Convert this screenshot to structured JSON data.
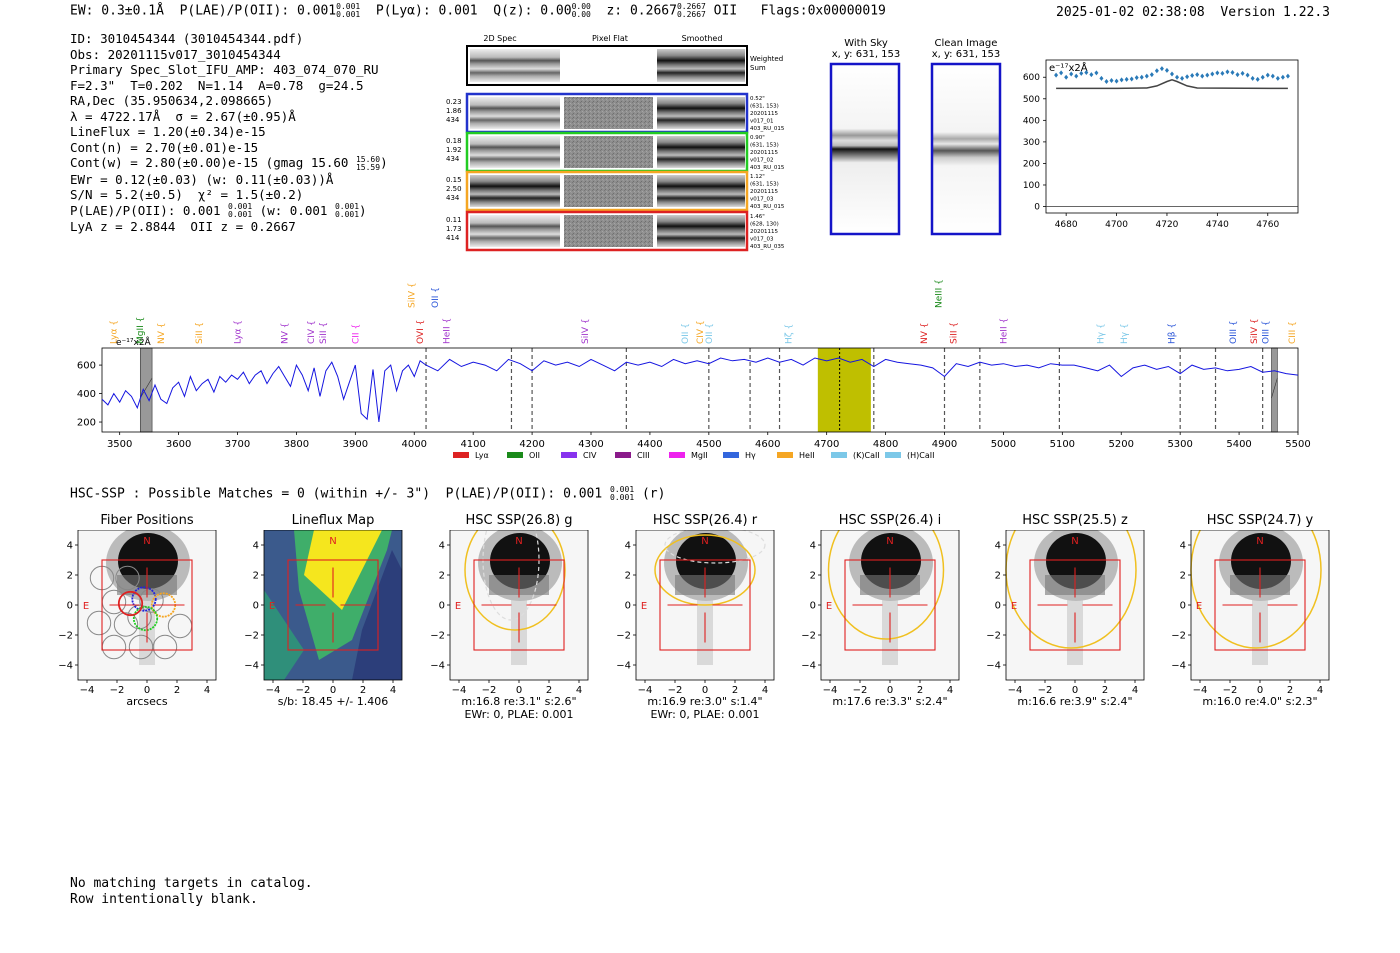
{
  "header": {
    "ew_label": "EW: 0.3±0.1Å",
    "plae_label": "P(LAE)/P(OII): 0.001",
    "plae_sup": "0.001",
    "plae_sub": "0.001",
    "plya_label": "P(Lyα): 0.001",
    "qz_label": "Q(z): 0.00",
    "qz_sup": "0.00",
    "qz_sub": "0.00",
    "z_label": "z: 0.2667",
    "z_sup": "0.2667",
    "z_sub": "0.2667",
    "z_line": "OII",
    "flags": "Flags:0x00000019",
    "timestamp": "2025-01-02 02:38:08",
    "version": "Version 1.22.3"
  },
  "info": {
    "id": "ID: 3010454344 (3010454344.pdf)",
    "obs": "Obs: 20201115v017_3010454344",
    "primary": "Primary Spec_Slot_IFU_AMP: 403_074_070_RU",
    "params": "F=2.3\"  T=0.202  N=1.14  A=0.78  g=24.5",
    "radec": "RA,Dec (35.950634,2.098665)",
    "lambda": "λ = 4722.17Å  σ = 2.67(±0.95)Å",
    "lineflux": "LineFlux = 1.20(±0.34)e-15",
    "cont_n": "Cont(n) = 2.70(±0.01)e-15",
    "cont_w": "Cont(w) = 2.80(±0.00)e-15 (gmag 15.60",
    "cont_w_sup": "15.60",
    "cont_w_sub": "15.59",
    "cont_w_close": ")",
    "ewr": "EWr = 0.12(±0.03) (w: 0.11(±0.03))Å",
    "sn": "S/N = 5.2(±0.5)  χ² = 1.5(±0.2)",
    "plae": "P(LAE)/P(OII): 0.001",
    "plae_sup": "0.001",
    "plae_sub": "0.001",
    "plae_w": "(w: 0.001",
    "plae_w_sup": "0.001",
    "plae_w_sub": "0.001",
    "plae_w_close": ")",
    "lya_oii": "LyA z = 2.8844  OII z = 0.2667"
  },
  "cutouts": {
    "col_labels": [
      "2D Spec",
      "Pixel Flat",
      "Smoothed"
    ],
    "weighted_label": "Weighted Sum",
    "rows": [
      {
        "left": [
          "0.23",
          "1.86",
          "434"
        ],
        "right": [
          "0.52\"",
          "(631, 153)",
          "20201115",
          "v017_01",
          "403_RU_015"
        ],
        "color": "#2233cc"
      },
      {
        "left": [
          "0.18",
          "1.92",
          "434"
        ],
        "right": [
          "0.90\"",
          "(631, 153)",
          "20201115",
          "v017_02",
          "403_RU_015"
        ],
        "color": "#22cc22"
      },
      {
        "left": [
          "0.15",
          "2.50",
          "434"
        ],
        "right": [
          "1.12\"",
          "(631, 153)",
          "20201115",
          "v017_03",
          "403_RU_015"
        ],
        "color": "#f5a623"
      },
      {
        "left": [
          "0.11",
          "1.73",
          "414"
        ],
        "right": [
          "1.46\"",
          "(628, 130)",
          "20201115",
          "v017_03",
          "403_RU_035"
        ],
        "color": "#dd2222"
      }
    ]
  },
  "sky_panels": {
    "with_sky_title": "With Sky",
    "with_sky_xy": "x, y: 631, 153",
    "clean_title": "Clean Image",
    "clean_xy": "x, y: 631, 153"
  },
  "zoom_plot": {
    "unit_label": "e⁻¹⁷x2Å",
    "x_ticks": [
      "4680",
      "4700",
      "4720",
      "4740",
      "4760"
    ],
    "y_ticks": [
      "0",
      "100",
      "200",
      "300",
      "400",
      "500",
      "600"
    ]
  },
  "chart_data": [
    {
      "type": "scatter",
      "title": "zoom spectrum",
      "xlim": [
        4672,
        4772
      ],
      "ylim": [
        -30,
        680
      ],
      "series": [
        {
          "name": "data",
          "color": "#2a7ab8",
          "x": [
            4676,
            4678,
            4680,
            4682,
            4684,
            4686,
            4688,
            4690,
            4692,
            4694,
            4696,
            4698,
            4700,
            4702,
            4704,
            4706,
            4708,
            4710,
            4712,
            4714,
            4716,
            4718,
            4720,
            4722,
            4724,
            4726,
            4728,
            4730,
            4732,
            4734,
            4736,
            4738,
            4740,
            4742,
            4744,
            4746,
            4748,
            4750,
            4752,
            4754,
            4756,
            4758,
            4760,
            4762,
            4764,
            4766,
            4768
          ],
          "y": [
            610,
            620,
            600,
            615,
            605,
            618,
            622,
            612,
            620,
            595,
            580,
            585,
            582,
            588,
            590,
            592,
            598,
            600,
            605,
            612,
            630,
            640,
            632,
            615,
            600,
            595,
            602,
            608,
            612,
            605,
            610,
            615,
            620,
            618,
            625,
            622,
            612,
            618,
            610,
            595,
            590,
            600,
            610,
            605,
            595,
            600,
            605
          ]
        },
        {
          "name": "model",
          "color": "#444444",
          "x": [
            4676,
            4700,
            4712,
            4716,
            4720,
            4722,
            4724,
            4728,
            4732,
            4768
          ],
          "y": [
            548,
            548,
            550,
            560,
            580,
            588,
            580,
            560,
            550,
            548
          ]
        }
      ]
    },
    {
      "type": "line",
      "title": "full spectrum",
      "xlabel": "",
      "ylabel": "e⁻¹⁷x2Å",
      "xlim": [
        3470,
        5500
      ],
      "ylim": [
        130,
        720
      ],
      "x_ticks": [
        3500,
        3600,
        3700,
        3800,
        3900,
        4000,
        4100,
        4200,
        4300,
        4400,
        4500,
        4600,
        4700,
        4800,
        4900,
        5000,
        5100,
        5200,
        5300,
        5400,
        5500
      ],
      "y_ticks": [
        200,
        400,
        600
      ],
      "series": [
        {
          "name": "flux",
          "color": "#1515e0",
          "x": [
            3470,
            3480,
            3490,
            3500,
            3510,
            3520,
            3530,
            3540,
            3550,
            3560,
            3570,
            3580,
            3590,
            3600,
            3610,
            3620,
            3630,
            3640,
            3650,
            3660,
            3670,
            3680,
            3690,
            3700,
            3710,
            3720,
            3730,
            3740,
            3750,
            3760,
            3770,
            3780,
            3790,
            3800,
            3810,
            3820,
            3830,
            3840,
            3850,
            3860,
            3870,
            3880,
            3890,
            3900,
            3910,
            3920,
            3930,
            3940,
            3950,
            3960,
            3970,
            3980,
            3990,
            4000,
            4010,
            4020,
            4040,
            4060,
            4080,
            4100,
            4120,
            4140,
            4160,
            4180,
            4200,
            4220,
            4240,
            4260,
            4280,
            4300,
            4320,
            4340,
            4360,
            4380,
            4400,
            4420,
            4440,
            4460,
            4480,
            4500,
            4520,
            4540,
            4560,
            4580,
            4600,
            4620,
            4640,
            4660,
            4680,
            4700,
            4720,
            4740,
            4760,
            4780,
            4800,
            4820,
            4840,
            4860,
            4880,
            4900,
            4920,
            4940,
            4960,
            4980,
            5000,
            5020,
            5040,
            5060,
            5080,
            5100,
            5120,
            5140,
            5160,
            5180,
            5200,
            5220,
            5240,
            5260,
            5280,
            5300,
            5320,
            5340,
            5360,
            5380,
            5400,
            5420,
            5440,
            5460,
            5480,
            5500
          ],
          "y": [
            360,
            320,
            400,
            340,
            420,
            380,
            300,
            430,
            350,
            460,
            360,
            330,
            440,
            480,
            380,
            520,
            420,
            470,
            500,
            410,
            520,
            480,
            530,
            500,
            550,
            470,
            530,
            560,
            470,
            540,
            590,
            520,
            450,
            600,
            530,
            420,
            580,
            380,
            560,
            620,
            520,
            360,
            480,
            600,
            260,
            220,
            570,
            200,
            560,
            600,
            420,
            560,
            600,
            520,
            630,
            600,
            560,
            640,
            590,
            620,
            600,
            560,
            640,
            610,
            560,
            630,
            600,
            620,
            590,
            640,
            600,
            560,
            620,
            600,
            620,
            590,
            640,
            610,
            630,
            610,
            650,
            630,
            640,
            620,
            650,
            620,
            640,
            600,
            650,
            630,
            650,
            620,
            640,
            590,
            640,
            620,
            610,
            600,
            580,
            520,
            610,
            590,
            620,
            600,
            610,
            590,
            600,
            580,
            610,
            600,
            600,
            580,
            560,
            600,
            520,
            580,
            600,
            570,
            590,
            540,
            600,
            570,
            580,
            560,
            570,
            590,
            550,
            560,
            540,
            530
          ]
        }
      ],
      "line_markers": [
        {
          "wave": 4020,
          "label": "OVI",
          "color": "#dd2222"
        },
        {
          "wave": 4165,
          "label": "OII",
          "color": "#2a55d8"
        },
        {
          "wave": 4200,
          "label": "OII",
          "color": "#2a55d8"
        },
        {
          "wave": 4360,
          "label": "SiIV",
          "color": "#a033cc"
        },
        {
          "wave": 4500,
          "label": "CIV",
          "color": "#f5a623"
        },
        {
          "wave": 4570,
          "label": "Hδ",
          "color": "#7cc8e8"
        },
        {
          "wave": 4620,
          "label": "Hγ",
          "color": "#7cc8e8"
        },
        {
          "wave": 4780,
          "label": "NV",
          "color": "#dd2222"
        },
        {
          "wave": 4900,
          "label": "SiII",
          "color": "#dd2222"
        },
        {
          "wave": 4960,
          "label": "HeII",
          "color": "#a033cc"
        },
        {
          "wave": 5095,
          "label": "Hγ",
          "color": "#7cc8e8"
        },
        {
          "wave": 5300,
          "label": "Hβ",
          "color": "#2a55d8"
        },
        {
          "wave": 5360,
          "label": "OIII",
          "color": "#2a55d8"
        },
        {
          "wave": 5440,
          "label": "SiIV",
          "color": "#dd2222"
        }
      ],
      "top_labels": [
        {
          "wave": 3495,
          "label": "Lyα",
          "color": "#f5a623"
        },
        {
          "wave": 3540,
          "label": "MgII",
          "color": "#1a8a1a"
        },
        {
          "wave": 3575,
          "label": "NV",
          "color": "#f5a623"
        },
        {
          "wave": 3640,
          "label": "SiII",
          "color": "#f5a623"
        },
        {
          "wave": 3705,
          "label": "Lyα",
          "color": "#a033cc"
        },
        {
          "wave": 3785,
          "label": "NV",
          "color": "#a033cc"
        },
        {
          "wave": 3830,
          "label": "CIV",
          "color": "#a033cc"
        },
        {
          "wave": 3850,
          "label": "SiII",
          "color": "#a033cc"
        },
        {
          "wave": 3905,
          "label": "CII",
          "color": "#ee22ee"
        },
        {
          "wave": 4015,
          "label": "OVI",
          "color": "#dd2222"
        },
        {
          "wave": 4060,
          "label": "HeII",
          "color": "#a033cc"
        },
        {
          "wave": 4295,
          "label": "SiIV",
          "color": "#a033cc"
        },
        {
          "wave": 4465,
          "label": "OII",
          "color": "#7cc8e8"
        },
        {
          "wave": 4490,
          "label": "CIV",
          "color": "#f5a623"
        },
        {
          "wave": 4505,
          "label": "OII",
          "color": "#7cc8e8"
        },
        {
          "wave": 4640,
          "label": "Hζ",
          "color": "#7cc8e8"
        },
        {
          "wave": 4870,
          "label": "NV",
          "color": "#dd2222"
        },
        {
          "wave": 4920,
          "label": "SiII",
          "color": "#dd2222"
        },
        {
          "wave": 5005,
          "label": "HeII",
          "color": "#a033cc"
        },
        {
          "wave": 5170,
          "label": "Hγ",
          "color": "#7cc8e8"
        },
        {
          "wave": 5210,
          "label": "Hγ",
          "color": "#7cc8e8"
        },
        {
          "wave": 5290,
          "label": "Hβ",
          "color": "#2a55d8"
        },
        {
          "wave": 5395,
          "label": "OIII",
          "color": "#2a55d8"
        },
        {
          "wave": 5430,
          "label": "SiIV",
          "color": "#dd2222"
        },
        {
          "wave": 5450,
          "label": "OIII",
          "color": "#2a55d8"
        },
        {
          "wave": 5495,
          "label": "CIII",
          "color": "#f5a623"
        }
      ],
      "upper_labels": [
        {
          "wave": 4000,
          "label": "SiIV",
          "color": "#f5a623"
        },
        {
          "wave": 4040,
          "label": "OII",
          "color": "#2a55d8"
        },
        {
          "wave": 4895,
          "label": "NeIII",
          "color": "#1a8a1a"
        }
      ],
      "highlight_band": [
        4685,
        4775
      ],
      "highlight_center": 4722,
      "gray_bands": [
        [
          3535,
          3555
        ],
        [
          5455,
          5465
        ]
      ],
      "unit_label": "e⁻¹⁷x2Å",
      "legend": [
        {
          "label": "Lyα",
          "color": "#dd2222"
        },
        {
          "label": "OII",
          "color": "#1a8a1a"
        },
        {
          "label": "CIV",
          "color": "#8833ee"
        },
        {
          "label": "CIII",
          "color": "#8a1a8a"
        },
        {
          "label": "MgII",
          "color": "#ee22ee"
        },
        {
          "label": "Hγ",
          "color": "#3366dd"
        },
        {
          "label": "HeII",
          "color": "#f5a623"
        },
        {
          "label": "(K)CaII",
          "color": "#7cc8e8"
        },
        {
          "label": "(H)CaII",
          "color": "#7cc8e8"
        }
      ]
    }
  ],
  "hsc_line": {
    "text": "HSC-SSP : Possible Matches = 0 (within +/- 3\")  P(LAE)/P(OII): 0.001",
    "sup": "0.001",
    "sub": "0.001",
    "suffix": "(r)"
  },
  "imaging_panels": [
    {
      "title": "Fiber Positions",
      "caption1": "arcsecs",
      "caption2": ""
    },
    {
      "title": "Lineflux Map",
      "caption1": "s/b: 18.45 +/- 1.406",
      "caption2": ""
    },
    {
      "title": "HSC SSP(26.8) g",
      "caption1": "m:16.8  re:3.1\"  s:2.6\"",
      "caption2": "EWr: 0, PLAE: 0.001"
    },
    {
      "title": "HSC SSP(26.4) r",
      "caption1": "m:16.9  re:3.0\"  s:1.4\"",
      "caption2": "EWr: 0, PLAE: 0.001"
    },
    {
      "title": "HSC SSP(26.4) i",
      "caption1": "m:17.6  re:3.3\"  s:2.4\"",
      "caption2": ""
    },
    {
      "title": "HSC SSP(25.5) z",
      "caption1": "m:16.6  re:3.9\"  s:2.4\"",
      "caption2": ""
    },
    {
      "title": "HSC SSP(24.7) y",
      "caption1": "m:16.0  re:4.0\"  s:2.3\"",
      "caption2": ""
    }
  ],
  "imaging_axes": {
    "ticks": [
      "−4",
      "−2",
      "0",
      "2",
      "4"
    ],
    "north": "N",
    "east": "E"
  },
  "footer": {
    "line1": "No matching targets in catalog.",
    "line2": "Row intentionally blank."
  }
}
